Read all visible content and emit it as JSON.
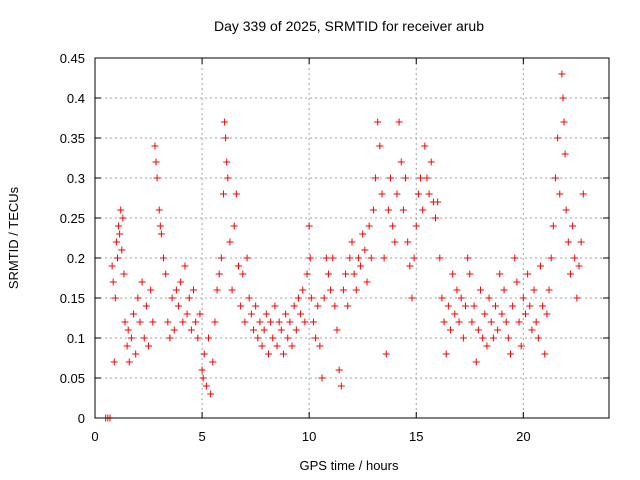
{
  "chart_data": {
    "type": "scatter",
    "title": "Day 339 of 2025, SRMTID for receiver arub",
    "xlabel": "GPS time / hours",
    "ylabel": "SRMTID / TECUs",
    "xlim": [
      0,
      24
    ],
    "ylim": [
      0,
      0.45
    ],
    "grid": true,
    "marker": "+",
    "color": "#ff0000",
    "x_ticks": [
      0,
      5,
      10,
      15,
      20
    ],
    "x_tick_labels": [
      "0",
      "5",
      "10",
      "15",
      "20"
    ],
    "y_ticks": [
      0,
      0.05,
      0.1,
      0.15,
      0.2,
      0.25,
      0.3,
      0.35,
      0.4,
      0.45
    ],
    "y_tick_labels": [
      "0",
      "0.05",
      "0.1",
      "0.15",
      "0.2",
      "0.25",
      "0.3",
      "0.35",
      "0.4",
      "0.45"
    ],
    "series": [
      {
        "name": "SRMTID",
        "points": [
          [
            0.5,
            0.0
          ],
          [
            0.6,
            0.0
          ],
          [
            0.7,
            0.0
          ],
          [
            0.8,
            0.19
          ],
          [
            0.85,
            0.17
          ],
          [
            0.9,
            0.07
          ],
          [
            0.95,
            0.15
          ],
          [
            1.0,
            0.22
          ],
          [
            1.05,
            0.2
          ],
          [
            1.1,
            0.24
          ],
          [
            1.15,
            0.23
          ],
          [
            1.2,
            0.26
          ],
          [
            1.25,
            0.21
          ],
          [
            1.3,
            0.25
          ],
          [
            1.35,
            0.18
          ],
          [
            1.4,
            0.12
          ],
          [
            1.5,
            0.09
          ],
          [
            1.55,
            0.11
          ],
          [
            1.6,
            0.07
          ],
          [
            1.7,
            0.1
          ],
          [
            1.8,
            0.13
          ],
          [
            1.9,
            0.08
          ],
          [
            2.0,
            0.15
          ],
          [
            2.1,
            0.12
          ],
          [
            2.2,
            0.17
          ],
          [
            2.3,
            0.1
          ],
          [
            2.4,
            0.14
          ],
          [
            2.5,
            0.09
          ],
          [
            2.6,
            0.16
          ],
          [
            2.7,
            0.12
          ],
          [
            2.8,
            0.34
          ],
          [
            2.85,
            0.32
          ],
          [
            2.9,
            0.3
          ],
          [
            3.0,
            0.26
          ],
          [
            3.05,
            0.24
          ],
          [
            3.1,
            0.23
          ],
          [
            3.2,
            0.2
          ],
          [
            3.3,
            0.18
          ],
          [
            3.4,
            0.12
          ],
          [
            3.5,
            0.1
          ],
          [
            3.6,
            0.15
          ],
          [
            3.7,
            0.11
          ],
          [
            3.8,
            0.16
          ],
          [
            3.9,
            0.14
          ],
          [
            4.0,
            0.17
          ],
          [
            4.1,
            0.12
          ],
          [
            4.2,
            0.19
          ],
          [
            4.3,
            0.13
          ],
          [
            4.4,
            0.15
          ],
          [
            4.5,
            0.11
          ],
          [
            4.6,
            0.16
          ],
          [
            4.7,
            0.12
          ],
          [
            4.8,
            0.1
          ],
          [
            4.9,
            0.13
          ],
          [
            5.0,
            0.06
          ],
          [
            5.05,
            0.05
          ],
          [
            5.1,
            0.08
          ],
          [
            5.2,
            0.04
          ],
          [
            5.3,
            0.1
          ],
          [
            5.4,
            0.03
          ],
          [
            5.5,
            0.07
          ],
          [
            5.6,
            0.12
          ],
          [
            5.7,
            0.16
          ],
          [
            5.8,
            0.18
          ],
          [
            5.9,
            0.2
          ],
          [
            6.0,
            0.28
          ],
          [
            6.05,
            0.37
          ],
          [
            6.1,
            0.35
          ],
          [
            6.15,
            0.32
          ],
          [
            6.2,
            0.3
          ],
          [
            6.3,
            0.22
          ],
          [
            6.4,
            0.16
          ],
          [
            6.5,
            0.24
          ],
          [
            6.6,
            0.28
          ],
          [
            6.7,
            0.19
          ],
          [
            6.8,
            0.14
          ],
          [
            6.9,
            0.18
          ],
          [
            7.0,
            0.12
          ],
          [
            7.1,
            0.2
          ],
          [
            7.2,
            0.15
          ],
          [
            7.3,
            0.13
          ],
          [
            7.4,
            0.11
          ],
          [
            7.5,
            0.14
          ],
          [
            7.6,
            0.1
          ],
          [
            7.7,
            0.12
          ],
          [
            7.8,
            0.09
          ],
          [
            7.9,
            0.11
          ],
          [
            8.0,
            0.13
          ],
          [
            8.1,
            0.08
          ],
          [
            8.2,
            0.12
          ],
          [
            8.3,
            0.1
          ],
          [
            8.4,
            0.14
          ],
          [
            8.5,
            0.09
          ],
          [
            8.6,
            0.12
          ],
          [
            8.7,
            0.11
          ],
          [
            8.8,
            0.08
          ],
          [
            8.9,
            0.13
          ],
          [
            9.0,
            0.1
          ],
          [
            9.1,
            0.12
          ],
          [
            9.2,
            0.09
          ],
          [
            9.3,
            0.14
          ],
          [
            9.4,
            0.11
          ],
          [
            9.5,
            0.15
          ],
          [
            9.6,
            0.13
          ],
          [
            9.7,
            0.16
          ],
          [
            9.8,
            0.12
          ],
          [
            9.9,
            0.18
          ],
          [
            10.0,
            0.24
          ],
          [
            10.05,
            0.2
          ],
          [
            10.1,
            0.15
          ],
          [
            10.2,
            0.12
          ],
          [
            10.3,
            0.1
          ],
          [
            10.4,
            0.14
          ],
          [
            10.5,
            0.09
          ],
          [
            10.6,
            0.05
          ],
          [
            10.7,
            0.15
          ],
          [
            10.8,
            0.2
          ],
          [
            10.9,
            0.18
          ],
          [
            11.0,
            0.16
          ],
          [
            11.1,
            0.2
          ],
          [
            11.2,
            0.14
          ],
          [
            11.3,
            0.11
          ],
          [
            11.4,
            0.06
          ],
          [
            11.5,
            0.04
          ],
          [
            11.6,
            0.16
          ],
          [
            11.7,
            0.18
          ],
          [
            11.8,
            0.14
          ],
          [
            11.9,
            0.2
          ],
          [
            12.0,
            0.22
          ],
          [
            12.1,
            0.18
          ],
          [
            12.2,
            0.16
          ],
          [
            12.3,
            0.2
          ],
          [
            12.4,
            0.19
          ],
          [
            12.5,
            0.23
          ],
          [
            12.6,
            0.21
          ],
          [
            12.7,
            0.17
          ],
          [
            12.8,
            0.24
          ],
          [
            12.9,
            0.2
          ],
          [
            13.0,
            0.26
          ],
          [
            13.1,
            0.3
          ],
          [
            13.2,
            0.37
          ],
          [
            13.3,
            0.34
          ],
          [
            13.4,
            0.28
          ],
          [
            13.5,
            0.2
          ],
          [
            13.6,
            0.08
          ],
          [
            13.7,
            0.26
          ],
          [
            13.8,
            0.3
          ],
          [
            13.9,
            0.24
          ],
          [
            14.0,
            0.22
          ],
          [
            14.1,
            0.28
          ],
          [
            14.2,
            0.37
          ],
          [
            14.3,
            0.32
          ],
          [
            14.4,
            0.26
          ],
          [
            14.5,
            0.3
          ],
          [
            14.6,
            0.22
          ],
          [
            14.7,
            0.19
          ],
          [
            14.8,
            0.15
          ],
          [
            14.9,
            0.2
          ],
          [
            15.0,
            0.24
          ],
          [
            15.1,
            0.28
          ],
          [
            15.2,
            0.3
          ],
          [
            15.3,
            0.26
          ],
          [
            15.4,
            0.34
          ],
          [
            15.5,
            0.3
          ],
          [
            15.6,
            0.28
          ],
          [
            15.7,
            0.32
          ],
          [
            15.8,
            0.27
          ],
          [
            15.9,
            0.25
          ],
          [
            16.0,
            0.27
          ],
          [
            16.1,
            0.2
          ],
          [
            16.2,
            0.15
          ],
          [
            16.3,
            0.12
          ],
          [
            16.4,
            0.08
          ],
          [
            16.5,
            0.14
          ],
          [
            16.6,
            0.11
          ],
          [
            16.7,
            0.18
          ],
          [
            16.8,
            0.13
          ],
          [
            16.9,
            0.16
          ],
          [
            17.0,
            0.12
          ],
          [
            17.1,
            0.15
          ],
          [
            17.2,
            0.1
          ],
          [
            17.3,
            0.14
          ],
          [
            17.4,
            0.2
          ],
          [
            17.5,
            0.18
          ],
          [
            17.6,
            0.12
          ],
          [
            17.7,
            0.14
          ],
          [
            17.8,
            0.07
          ],
          [
            17.9,
            0.11
          ],
          [
            18.0,
            0.16
          ],
          [
            18.1,
            0.1
          ],
          [
            18.2,
            0.13
          ],
          [
            18.3,
            0.09
          ],
          [
            18.4,
            0.15
          ],
          [
            18.5,
            0.12
          ],
          [
            18.6,
            0.1
          ],
          [
            18.7,
            0.14
          ],
          [
            18.8,
            0.11
          ],
          [
            18.9,
            0.18
          ],
          [
            19.0,
            0.13
          ],
          [
            19.1,
            0.16
          ],
          [
            19.2,
            0.12
          ],
          [
            19.3,
            0.1
          ],
          [
            19.4,
            0.08
          ],
          [
            19.5,
            0.14
          ],
          [
            19.6,
            0.2
          ],
          [
            19.7,
            0.17
          ],
          [
            19.8,
            0.12
          ],
          [
            19.9,
            0.09
          ],
          [
            20.0,
            0.15
          ],
          [
            20.1,
            0.13
          ],
          [
            20.2,
            0.18
          ],
          [
            20.3,
            0.14
          ],
          [
            20.4,
            0.11
          ],
          [
            20.5,
            0.16
          ],
          [
            20.6,
            0.12
          ],
          [
            20.7,
            0.1
          ],
          [
            20.8,
            0.19
          ],
          [
            20.9,
            0.14
          ],
          [
            21.0,
            0.08
          ],
          [
            21.1,
            0.13
          ],
          [
            21.2,
            0.16
          ],
          [
            21.3,
            0.2
          ],
          [
            21.4,
            0.24
          ],
          [
            21.5,
            0.3
          ],
          [
            21.6,
            0.35
          ],
          [
            21.7,
            0.28
          ],
          [
            21.8,
            0.43
          ],
          [
            21.85,
            0.4
          ],
          [
            21.9,
            0.37
          ],
          [
            21.95,
            0.33
          ],
          [
            22.0,
            0.26
          ],
          [
            22.1,
            0.22
          ],
          [
            22.2,
            0.18
          ],
          [
            22.3,
            0.24
          ],
          [
            22.4,
            0.2
          ],
          [
            22.5,
            0.15
          ],
          [
            22.6,
            0.19
          ],
          [
            22.7,
            0.22
          ],
          [
            22.8,
            0.28
          ]
        ]
      }
    ]
  }
}
